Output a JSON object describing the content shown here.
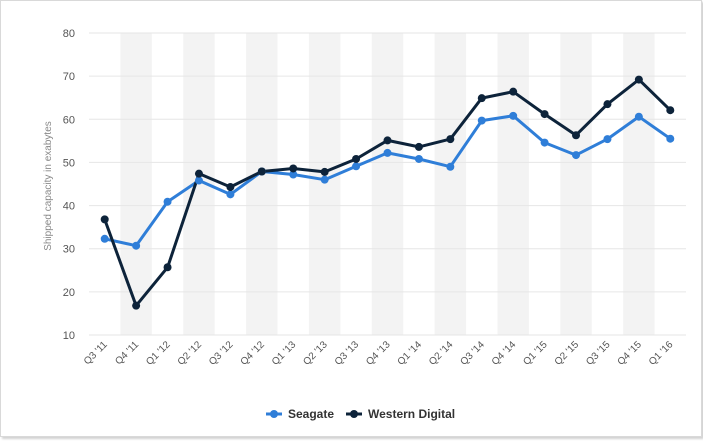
{
  "chart_data": {
    "type": "line",
    "title": "",
    "xlabel": "",
    "ylabel": "Shipped capacity in exabytes",
    "ylim": [
      10,
      80
    ],
    "yticks": [
      10,
      20,
      30,
      40,
      50,
      60,
      70,
      80
    ],
    "grid": "horizontal",
    "legend_position": "bottom",
    "categories": [
      "Q3 '11",
      "Q4 '11",
      "Q1 '12",
      "Q2 '12",
      "Q3 '12",
      "Q4 '12",
      "Q1 '13",
      "Q2 '13",
      "Q3 '13",
      "Q4 '13",
      "Q1 '14",
      "Q2 '14",
      "Q3 '14",
      "Q4 '14",
      "Q1 '15",
      "Q2 '15",
      "Q3 '15",
      "Q4 '15",
      "Q1 '16"
    ],
    "series": [
      {
        "name": "Seagate",
        "color": "#2f7ed8",
        "values": [
          32.3,
          30.7,
          40.9,
          45.8,
          42.6,
          47.9,
          47.2,
          46.0,
          49.1,
          52.2,
          50.8,
          49.0,
          59.7,
          60.8,
          54.6,
          51.7,
          55.4,
          60.6,
          55.5
        ]
      },
      {
        "name": "Western Digital",
        "color": "#0d233a",
        "values": [
          36.8,
          16.8,
          25.7,
          47.4,
          44.3,
          47.9,
          48.6,
          47.8,
          50.8,
          55.1,
          53.6,
          55.4,
          64.9,
          66.4,
          61.2,
          56.3,
          63.5,
          69.2,
          62.1
        ]
      }
    ]
  }
}
